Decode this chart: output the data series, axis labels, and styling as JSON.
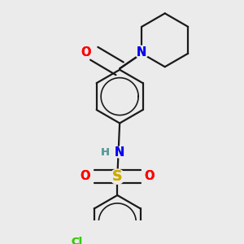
{
  "bg_color": "#ebebeb",
  "bond_color": "#1a1a1a",
  "bond_width": 1.6,
  "atom_colors": {
    "O": "#ff0000",
    "N": "#0000ee",
    "S": "#ccaa00",
    "Cl": "#33cc00",
    "H": "#5a9999",
    "C": "#1a1a1a"
  },
  "font_size": 9.5,
  "fig_size": [
    3.0,
    3.0
  ],
  "dpi": 100
}
